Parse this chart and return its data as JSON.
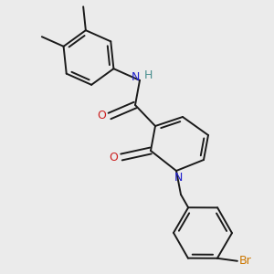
{
  "background_color": "#ebebeb",
  "bond_color": "#1a1a1a",
  "bond_width": 1.4,
  "figsize": [
    3.0,
    3.0
  ],
  "dpi": 100,
  "colors": {
    "N": "#2020cc",
    "O": "#cc2020",
    "Br": "#cc7700",
    "H": "#4a9090",
    "C": "#1a1a1a"
  }
}
